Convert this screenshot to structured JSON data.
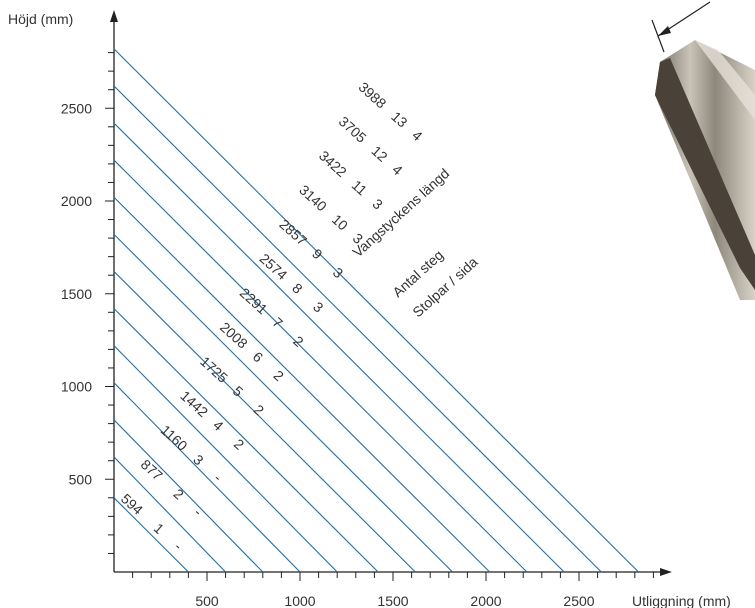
{
  "chart_data": {
    "type": "line",
    "ylabel": "Höjd (mm)",
    "xlabel": "Utliggning (mm)",
    "xlim": [
      0,
      2900
    ],
    "ylim": [
      0,
      2900
    ],
    "x_ticks": [
      500,
      1000,
      1500,
      2000,
      2500
    ],
    "y_ticks": [
      500,
      1000,
      1500,
      2000,
      2500
    ],
    "x_tick_labels": [
      "500",
      "1000",
      "1500",
      "2000",
      "2500"
    ],
    "y_tick_labels": [
      "500",
      "1000",
      "1500",
      "2000",
      "2500"
    ],
    "minor_tick_step": 100,
    "line_color": "#1f6fa8",
    "column_headers": [
      "Vangstyckens längd",
      "Antal steg",
      "Stolpar / sida"
    ],
    "series": [
      {
        "length": "594",
        "steps": "1",
        "posts": "-",
        "x": [
          0,
          400
        ],
        "y": [
          400,
          0
        ]
      },
      {
        "length": "877",
        "steps": "2",
        "posts": "-",
        "x": [
          0,
          600
        ],
        "y": [
          620,
          0
        ]
      },
      {
        "length": "1160",
        "steps": "3",
        "posts": "-",
        "x": [
          0,
          800
        ],
        "y": [
          820,
          0
        ]
      },
      {
        "length": "1442",
        "steps": "4",
        "posts": "2",
        "x": [
          0,
          1000
        ],
        "y": [
          1020,
          0
        ]
      },
      {
        "length": "1725",
        "steps": "5",
        "posts": "2",
        "x": [
          0,
          1200
        ],
        "y": [
          1220,
          0
        ]
      },
      {
        "length": "2008",
        "steps": "6",
        "posts": "2",
        "x": [
          0,
          1420
        ],
        "y": [
          1420,
          0
        ]
      },
      {
        "length": "2291",
        "steps": "7",
        "posts": "2",
        "x": [
          0,
          1620
        ],
        "y": [
          1620,
          0
        ]
      },
      {
        "length": "2574",
        "steps": "8",
        "posts": "3",
        "x": [
          0,
          1820
        ],
        "y": [
          1820,
          0
        ]
      },
      {
        "length": "2857",
        "steps": "9",
        "posts": "3",
        "x": [
          0,
          2020
        ],
        "y": [
          2020,
          0
        ]
      },
      {
        "length": "3140",
        "steps": "10",
        "posts": "3",
        "x": [
          0,
          2220
        ],
        "y": [
          2220,
          0
        ]
      },
      {
        "length": "3422",
        "steps": "11",
        "posts": "3",
        "x": [
          0,
          2420
        ],
        "y": [
          2420,
          0
        ]
      },
      {
        "length": "3705",
        "steps": "12",
        "posts": "4",
        "x": [
          0,
          2620
        ],
        "y": [
          2620,
          0
        ]
      },
      {
        "length": "3988",
        "steps": "13",
        "posts": "4",
        "x": [
          0,
          2820
        ],
        "y": [
          2820,
          0
        ]
      }
    ]
  }
}
